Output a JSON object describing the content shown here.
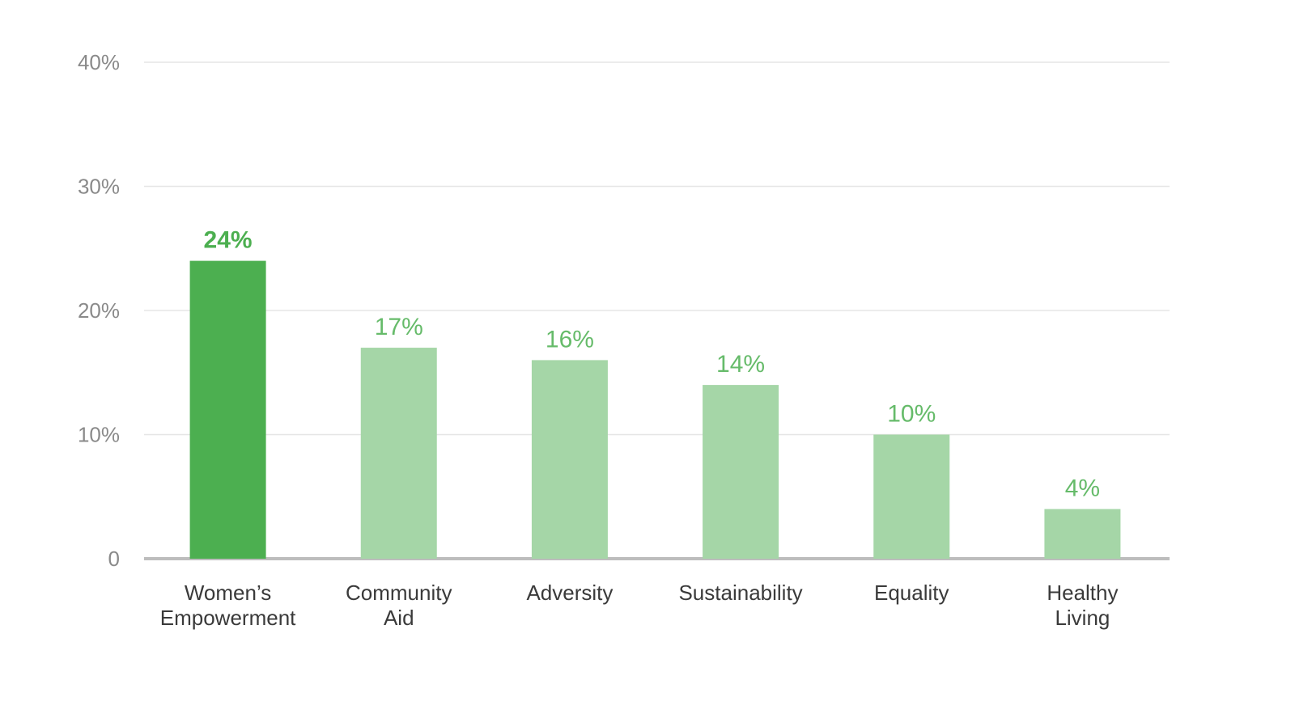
{
  "chart_data": {
    "type": "bar",
    "title": "",
    "xlabel": "",
    "ylabel": "",
    "categories": [
      [
        "Women’s",
        "Empowerment"
      ],
      [
        "Community",
        "Aid"
      ],
      [
        "Adversity"
      ],
      [
        "Sustainability"
      ],
      [
        "Equality"
      ],
      [
        "Healthy",
        "Living"
      ]
    ],
    "values": [
      24,
      17,
      16,
      14,
      10,
      4
    ],
    "value_labels": [
      "24%",
      "17%",
      "16%",
      "14%",
      "10%",
      "4%"
    ],
    "ylim": [
      0,
      40
    ],
    "y_ticks": [
      0,
      10,
      20,
      30,
      40
    ],
    "y_tick_labels": [
      "0",
      "10%",
      "20%",
      "30%",
      "40%"
    ],
    "highlight_index": 0,
    "grid": true,
    "legend": "none",
    "colors": {
      "highlight_bar": "#4caf50",
      "bar": "#a5d6a7",
      "highlight_label": "#4caf50",
      "label": "#66bb6a",
      "grid": "#e6e6e6",
      "baseline": "#bdbdbd"
    }
  }
}
